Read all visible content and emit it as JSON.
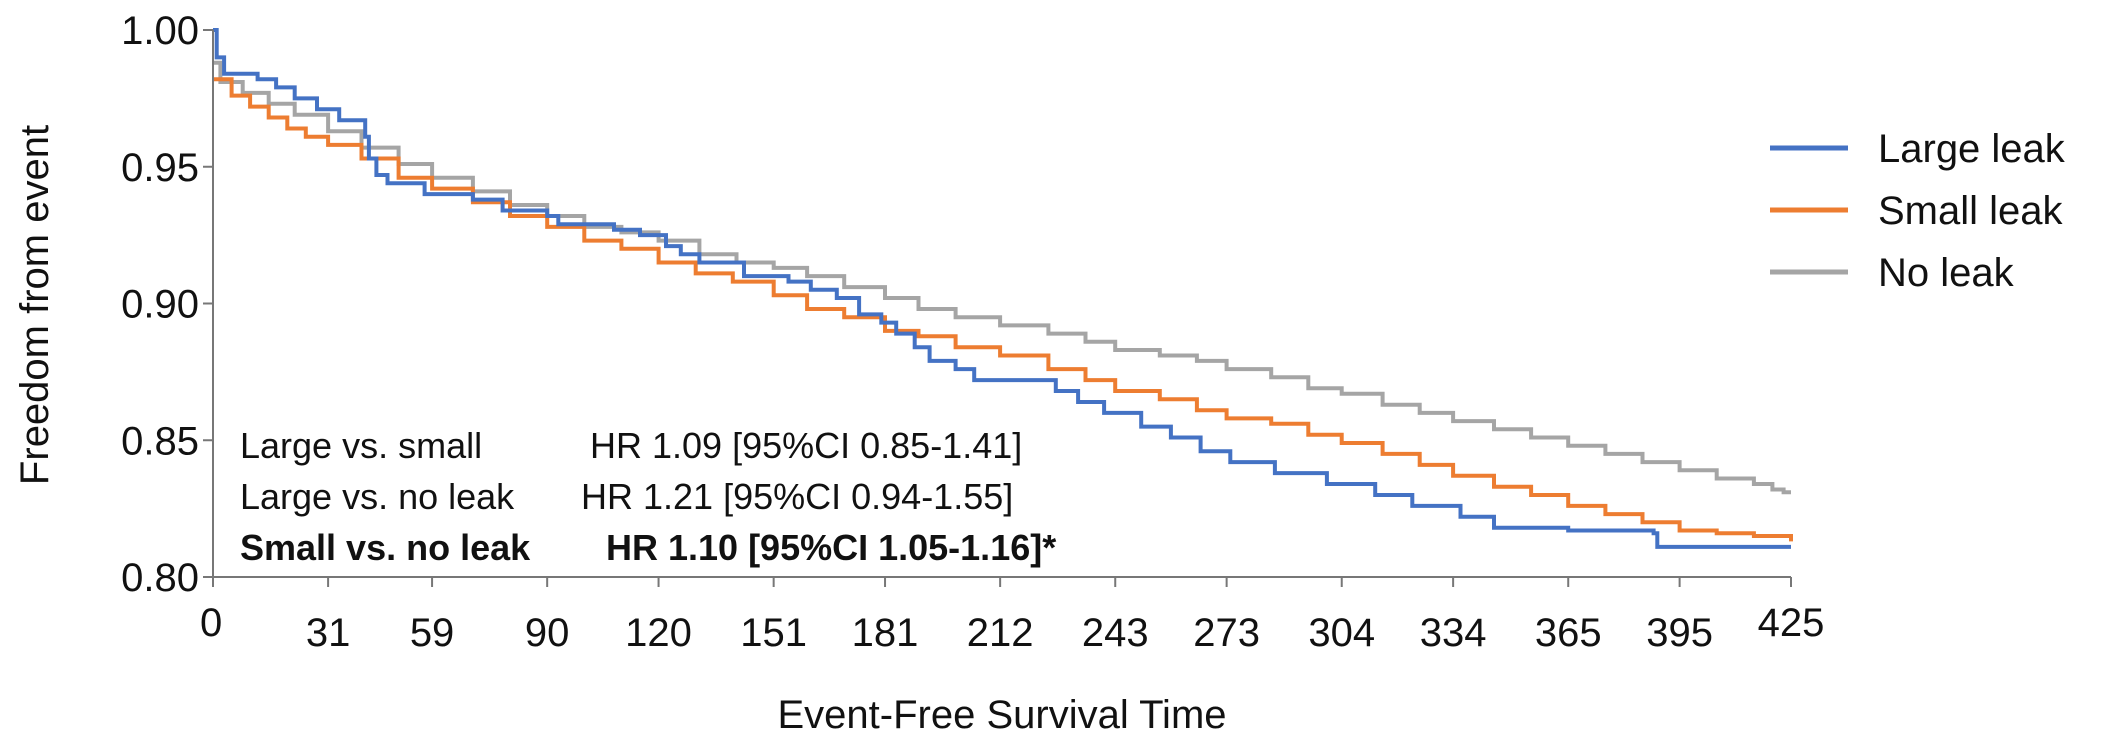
{
  "chart_data": {
    "type": "line",
    "step": true,
    "title": "",
    "xlabel": "Event-Free Survival Time",
    "ylabel": "Freedom from event",
    "xlim": [
      0,
      425
    ],
    "ylim": [
      0.8,
      1.0
    ],
    "x_ticks": [
      0,
      31,
      59,
      90,
      120,
      151,
      181,
      212,
      243,
      273,
      304,
      334,
      365,
      395,
      425
    ],
    "y_ticks": [
      "0.80",
      "0.85",
      "0.90",
      "0.95",
      "1.00"
    ],
    "grid": false,
    "legend_position": "top-right",
    "colors": {
      "large": "#4472C4",
      "small": "#ED7D31",
      "none": "#A5A5A5"
    },
    "series": [
      {
        "name": "Large leak",
        "color": "#4472C4",
        "points": [
          [
            0,
            1.0
          ],
          [
            1,
            0.99
          ],
          [
            3,
            0.984
          ],
          [
            12,
            0.982
          ],
          [
            17,
            0.979
          ],
          [
            22,
            0.975
          ],
          [
            28,
            0.971
          ],
          [
            34,
            0.967
          ],
          [
            41,
            0.961
          ],
          [
            42,
            0.953
          ],
          [
            44,
            0.947
          ],
          [
            47,
            0.944
          ],
          [
            57,
            0.94
          ],
          [
            70,
            0.938
          ],
          [
            78,
            0.934
          ],
          [
            90,
            0.932
          ],
          [
            93,
            0.929
          ],
          [
            108,
            0.927
          ],
          [
            115,
            0.925
          ],
          [
            122,
            0.921
          ],
          [
            126,
            0.918
          ],
          [
            131,
            0.915
          ],
          [
            143,
            0.91
          ],
          [
            155,
            0.908
          ],
          [
            161,
            0.905
          ],
          [
            168,
            0.902
          ],
          [
            174,
            0.896
          ],
          [
            180,
            0.893
          ],
          [
            184,
            0.889
          ],
          [
            189,
            0.884
          ],
          [
            193,
            0.879
          ],
          [
            200,
            0.876
          ],
          [
            205,
            0.872
          ],
          [
            212,
            0.872
          ],
          [
            217,
            0.872
          ],
          [
            227,
            0.868
          ],
          [
            233,
            0.864
          ],
          [
            240,
            0.86
          ],
          [
            248,
            0.86
          ],
          [
            250,
            0.855
          ],
          [
            258,
            0.851
          ],
          [
            266,
            0.846
          ],
          [
            274,
            0.842
          ],
          [
            286,
            0.838
          ],
          [
            300,
            0.834
          ],
          [
            313,
            0.83
          ],
          [
            323,
            0.826
          ],
          [
            336,
            0.822
          ],
          [
            345,
            0.818
          ],
          [
            365,
            0.817
          ],
          [
            388,
            0.816
          ],
          [
            389,
            0.811
          ],
          [
            425,
            0.811
          ]
        ]
      },
      {
        "name": "Small leak",
        "color": "#ED7D31",
        "points": [
          [
            0,
            0.982
          ],
          [
            5,
            0.976
          ],
          [
            10,
            0.972
          ],
          [
            15,
            0.968
          ],
          [
            20,
            0.964
          ],
          [
            25,
            0.961
          ],
          [
            31,
            0.958
          ],
          [
            40,
            0.953
          ],
          [
            50,
            0.946
          ],
          [
            59,
            0.942
          ],
          [
            70,
            0.937
          ],
          [
            80,
            0.932
          ],
          [
            90,
            0.928
          ],
          [
            100,
            0.923
          ],
          [
            110,
            0.92
          ],
          [
            120,
            0.915
          ],
          [
            130,
            0.911
          ],
          [
            140,
            0.908
          ],
          [
            151,
            0.903
          ],
          [
            160,
            0.898
          ],
          [
            170,
            0.895
          ],
          [
            181,
            0.89
          ],
          [
            190,
            0.888
          ],
          [
            200,
            0.884
          ],
          [
            212,
            0.881
          ],
          [
            225,
            0.876
          ],
          [
            235,
            0.872
          ],
          [
            243,
            0.868
          ],
          [
            255,
            0.865
          ],
          [
            265,
            0.861
          ],
          [
            273,
            0.858
          ],
          [
            285,
            0.856
          ],
          [
            295,
            0.852
          ],
          [
            304,
            0.849
          ],
          [
            315,
            0.845
          ],
          [
            325,
            0.841
          ],
          [
            334,
            0.837
          ],
          [
            345,
            0.833
          ],
          [
            355,
            0.83
          ],
          [
            365,
            0.826
          ],
          [
            375,
            0.823
          ],
          [
            385,
            0.82
          ],
          [
            395,
            0.817
          ],
          [
            405,
            0.816
          ],
          [
            415,
            0.815
          ],
          [
            425,
            0.813
          ]
        ]
      },
      {
        "name": "No leak",
        "color": "#A5A5A5",
        "points": [
          [
            0,
            0.988
          ],
          [
            2,
            0.981
          ],
          [
            8,
            0.977
          ],
          [
            15,
            0.973
          ],
          [
            22,
            0.969
          ],
          [
            31,
            0.963
          ],
          [
            40,
            0.957
          ],
          [
            50,
            0.951
          ],
          [
            59,
            0.946
          ],
          [
            70,
            0.941
          ],
          [
            80,
            0.936
          ],
          [
            90,
            0.932
          ],
          [
            100,
            0.928
          ],
          [
            110,
            0.926
          ],
          [
            120,
            0.923
          ],
          [
            131,
            0.918
          ],
          [
            141,
            0.915
          ],
          [
            151,
            0.913
          ],
          [
            160,
            0.91
          ],
          [
            170,
            0.906
          ],
          [
            181,
            0.902
          ],
          [
            190,
            0.898
          ],
          [
            200,
            0.895
          ],
          [
            212,
            0.892
          ],
          [
            225,
            0.889
          ],
          [
            235,
            0.886
          ],
          [
            243,
            0.883
          ],
          [
            255,
            0.881
          ],
          [
            265,
            0.879
          ],
          [
            273,
            0.876
          ],
          [
            285,
            0.873
          ],
          [
            295,
            0.869
          ],
          [
            304,
            0.867
          ],
          [
            315,
            0.863
          ],
          [
            325,
            0.86
          ],
          [
            334,
            0.857
          ],
          [
            345,
            0.854
          ],
          [
            355,
            0.851
          ],
          [
            365,
            0.848
          ],
          [
            375,
            0.845
          ],
          [
            385,
            0.842
          ],
          [
            395,
            0.839
          ],
          [
            405,
            0.836
          ],
          [
            415,
            0.834
          ],
          [
            420,
            0.832
          ],
          [
            423,
            0.831
          ],
          [
            425,
            0.831
          ]
        ]
      }
    ],
    "annotations": [
      {
        "label": "Large vs. small",
        "value": "HR 1.09 [95%CI 0.85-1.41]",
        "bold": false
      },
      {
        "label": "Large vs. no leak",
        "value": "HR 1.21 [95%CI 0.94-1.55]",
        "bold": false
      },
      {
        "label": "Small vs. no leak",
        "value": "HR 1.10 [95%CI 1.05-1.16]*",
        "bold": true
      }
    ]
  }
}
